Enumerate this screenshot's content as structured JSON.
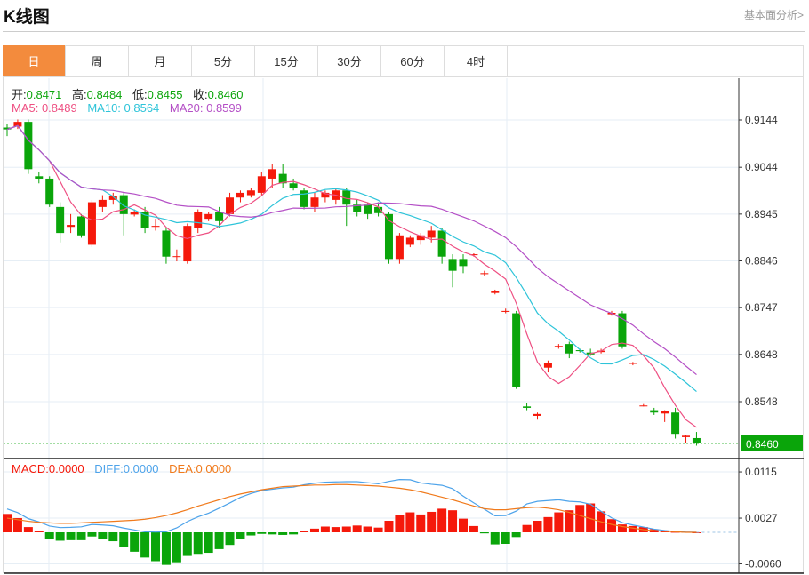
{
  "header": {
    "title": "K线图",
    "link": "基本面分析>"
  },
  "tabs": [
    {
      "label": "日",
      "active": true
    },
    {
      "label": "周"
    },
    {
      "label": "月"
    },
    {
      "label": "5分"
    },
    {
      "label": "15分"
    },
    {
      "label": "30分"
    },
    {
      "label": "60分"
    },
    {
      "label": "4时"
    }
  ],
  "ohlc": {
    "open_label": "开:",
    "open": "0.8471",
    "high_label": "高:",
    "high": "0.8484",
    "low_label": "低:",
    "low": "0.8455",
    "close_label": "收:",
    "close": "0.8460"
  },
  "ma": {
    "ma5_label": "MA5: 0.8489",
    "ma10_label": "MA10: 0.8564",
    "ma20_label": "MA20: 0.8599"
  },
  "macd_legend": {
    "macd": "MACD:0.0000",
    "diff": "DIFF:0.0000",
    "dea": "DEA:0.0000"
  },
  "colors": {
    "up": "#f5190b",
    "down": "#0aa50a",
    "ma5": "#ee4f82",
    "ma10": "#2ec4d9",
    "ma20": "#b44fc6",
    "diff": "#4da3ea",
    "dea": "#f07a1c",
    "accent": "#f38b3d"
  },
  "chart_data": {
    "type": "candlestick",
    "price_ticks": [
      "0.9144",
      "0.9044",
      "0.8945",
      "0.8846",
      "0.8747",
      "0.8648",
      "0.8548"
    ],
    "current_price": "0.8460",
    "macd_ticks": [
      "0.0115",
      "0.0027",
      "-0.0060"
    ],
    "candles": [
      [
        0.9128,
        0.9135,
        0.911,
        0.9124
      ],
      [
        0.913,
        0.9145,
        0.9125,
        0.914
      ],
      [
        0.914,
        0.9145,
        0.903,
        0.904
      ],
      [
        0.9025,
        0.9035,
        0.901,
        0.902
      ],
      [
        0.902,
        0.9025,
        0.896,
        0.8965
      ],
      [
        0.896,
        0.897,
        0.8885,
        0.8905
      ],
      [
        0.8918,
        0.8945,
        0.8905,
        0.8922
      ],
      [
        0.894,
        0.8945,
        0.8895,
        0.89
      ],
      [
        0.888,
        0.8975,
        0.8875,
        0.897
      ],
      [
        0.896,
        0.8985,
        0.895,
        0.8975
      ],
      [
        0.8975,
        0.899,
        0.8965,
        0.8983
      ],
      [
        0.8985,
        0.899,
        0.89,
        0.8945
      ],
      [
        0.8944,
        0.8955,
        0.894,
        0.895
      ],
      [
        0.895,
        0.896,
        0.8905,
        0.8915
      ],
      [
        0.8918,
        0.8935,
        0.891,
        0.892
      ],
      [
        0.891,
        0.8915,
        0.884,
        0.8855
      ],
      [
        0.8855,
        0.887,
        0.8845,
        0.8856
      ],
      [
        0.8845,
        0.8925,
        0.884,
        0.892
      ],
      [
        0.8915,
        0.8955,
        0.8905,
        0.895
      ],
      [
        0.8935,
        0.895,
        0.893,
        0.8945
      ],
      [
        0.895,
        0.896,
        0.8915,
        0.893
      ],
      [
        0.8945,
        0.899,
        0.894,
        0.898
      ],
      [
        0.898,
        0.8995,
        0.897,
        0.899
      ],
      [
        0.8985,
        0.9,
        0.898,
        0.8995
      ],
      [
        0.899,
        0.9035,
        0.8985,
        0.9025
      ],
      [
        0.902,
        0.905,
        0.9,
        0.904
      ],
      [
        0.903,
        0.905,
        0.9,
        0.901
      ],
      [
        0.901,
        0.902,
        0.8995,
        0.9
      ],
      [
        0.8995,
        0.9,
        0.8955,
        0.896
      ],
      [
        0.896,
        0.899,
        0.895,
        0.898
      ],
      [
        0.898,
        0.8995,
        0.897,
        0.899
      ],
      [
        0.8975,
        0.9,
        0.8965,
        0.8995
      ],
      [
        0.8995,
        0.9,
        0.892,
        0.8965
      ],
      [
        0.8965,
        0.8975,
        0.894,
        0.895
      ],
      [
        0.8965,
        0.897,
        0.8935,
        0.8945
      ],
      [
        0.896,
        0.897,
        0.894,
        0.8947
      ],
      [
        0.8945,
        0.895,
        0.884,
        0.885
      ],
      [
        0.885,
        0.8905,
        0.884,
        0.89
      ],
      [
        0.888,
        0.89,
        0.8875,
        0.8895
      ],
      [
        0.889,
        0.8905,
        0.888,
        0.89
      ],
      [
        0.8895,
        0.892,
        0.8885,
        0.891
      ],
      [
        0.891,
        0.8915,
        0.884,
        0.8855
      ],
      [
        0.885,
        0.886,
        0.879,
        0.8825
      ],
      [
        0.885,
        0.886,
        0.882,
        0.8835
      ],
      [
        0.8858,
        0.8862,
        0.8855,
        0.886
      ],
      [
        0.8818,
        0.8825,
        0.8815,
        0.882
      ],
      [
        0.8778,
        0.8785,
        0.8775,
        0.8782
      ],
      [
        0.8738,
        0.8745,
        0.8735,
        0.874
      ],
      [
        0.8735,
        0.874,
        0.8575,
        0.858
      ],
      [
        0.8538,
        0.8545,
        0.853,
        0.8535
      ],
      [
        0.8518,
        0.8525,
        0.851,
        0.8522
      ],
      [
        0.862,
        0.8635,
        0.861,
        0.863
      ],
      [
        0.8663,
        0.867,
        0.866,
        0.8666
      ],
      [
        0.867,
        0.8675,
        0.864,
        0.865
      ],
      [
        0.8657,
        0.866,
        0.8652,
        0.8655
      ],
      [
        0.8652,
        0.866,
        0.8645,
        0.8648
      ],
      [
        0.8653,
        0.866,
        0.865,
        0.8656
      ],
      [
        0.8733,
        0.874,
        0.873,
        0.8736
      ],
      [
        0.8735,
        0.874,
        0.866,
        0.8665
      ],
      [
        0.8628,
        0.8632,
        0.8625,
        0.863
      ],
      [
        0.854,
        0.8543,
        0.8538,
        0.854
      ],
      [
        0.853,
        0.8535,
        0.852,
        0.8525
      ],
      [
        0.8523,
        0.853,
        0.8505,
        0.8528
      ],
      [
        0.8525,
        0.8535,
        0.847,
        0.848
      ],
      [
        0.8473,
        0.8478,
        0.846,
        0.8476
      ],
      [
        0.8471,
        0.8484,
        0.8455,
        0.846
      ]
    ],
    "macd_hist_e4": [
      35,
      27,
      10,
      2,
      -12,
      -16,
      -15,
      -15,
      -8,
      -12,
      -17,
      -28,
      -37,
      -48,
      -55,
      -62,
      -57,
      -45,
      -41,
      -39,
      -32,
      -24,
      -13,
      -6,
      -3,
      -4,
      -5,
      -4,
      3,
      7,
      11,
      10,
      11,
      13,
      11,
      9,
      22,
      33,
      38,
      34,
      39,
      45,
      42,
      26,
      12,
      -2,
      -23,
      -22,
      -9,
      14,
      22,
      29,
      38,
      42,
      52,
      55,
      40,
      25,
      15,
      12,
      10,
      6,
      3,
      1,
      1,
      0
    ],
    "dea_e4": [
      27,
      24,
      21,
      19,
      18,
      17,
      17,
      18,
      19,
      20,
      21,
      22,
      23,
      25,
      28,
      32,
      37,
      43,
      50,
      56,
      62,
      68,
      73,
      77,
      81,
      84,
      87,
      88,
      89,
      90,
      90,
      91,
      91,
      90,
      89,
      88,
      86,
      84,
      81,
      77,
      72,
      67,
      62,
      56,
      50,
      45,
      43,
      43,
      45,
      47,
      48,
      46,
      43,
      38,
      32,
      26,
      20,
      15,
      11,
      8,
      5,
      3,
      2,
      1,
      0,
      0
    ]
  }
}
